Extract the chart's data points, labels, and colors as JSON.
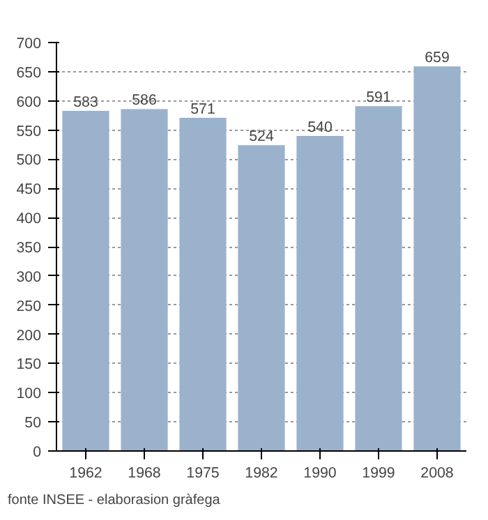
{
  "chart_data": {
    "type": "bar",
    "categories": [
      "1962",
      "1968",
      "1975",
      "1982",
      "1990",
      "1999",
      "2008"
    ],
    "values": [
      583,
      586,
      571,
      524,
      540,
      591,
      659
    ],
    "color": "#9bb2cd",
    "data_labels": true,
    "ylim": [
      0,
      700
    ],
    "yticks": [
      0,
      50,
      100,
      150,
      200,
      250,
      300,
      350,
      400,
      450,
      500,
      550,
      600,
      650,
      700
    ],
    "grid": "y",
    "annotations": [
      "fonte INSEE - elaborasion gràfega"
    ]
  }
}
